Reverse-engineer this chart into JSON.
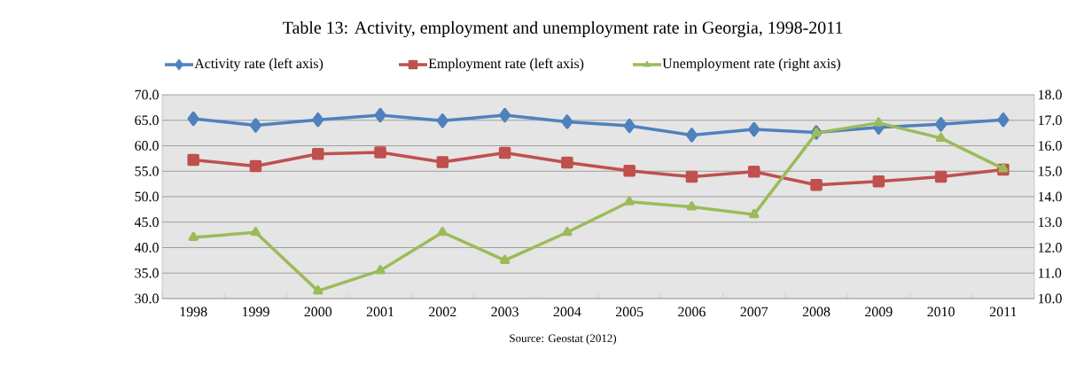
{
  "chart_data": {
    "type": "line",
    "title": "Table 13: Activity, employment and unemployment rate in Georgia, 1998-2011",
    "categories": [
      "1998",
      "1999",
      "2000",
      "2001",
      "2002",
      "2003",
      "2004",
      "2005",
      "2006",
      "2007",
      "2008",
      "2009",
      "2010",
      "2011"
    ],
    "series": [
      {
        "name": "Activity rate (left axis)",
        "color": "#4f81bd",
        "marker": "diamond",
        "values": [
          65.3,
          64.0,
          65.1,
          66.0,
          64.9,
          66.0,
          64.7,
          63.9,
          62.1,
          63.2,
          62.6,
          63.6,
          64.2,
          65.1
        ]
      },
      {
        "name": "Employment rate (left axis)",
        "color": "#c0504d",
        "marker": "square",
        "values": [
          57.2,
          56.0,
          58.4,
          58.7,
          56.8,
          58.6,
          56.7,
          55.1,
          53.9,
          54.9,
          52.3,
          53.0,
          53.9,
          55.3
        ]
      },
      {
        "name": "Unemployment rate (right axis)",
        "color": "#9bbb59",
        "marker": "triangle",
        "axis": "y2",
        "values": [
          12.4,
          12.6,
          10.3,
          11.1,
          12.6,
          11.5,
          12.6,
          13.8,
          13.6,
          13.3,
          16.5,
          16.9,
          16.3,
          15.1
        ]
      }
    ],
    "ylim": [
      30,
      70
    ],
    "yticks": [
      {
        "value": 30,
        "label": "30.0"
      },
      {
        "value": 35,
        "label": "35.0"
      },
      {
        "value": 40,
        "label": "40.0"
      },
      {
        "value": 45,
        "label": "45.0"
      },
      {
        "value": 50,
        "label": "50.0"
      },
      {
        "value": 55,
        "label": "55.0"
      },
      {
        "value": 60,
        "label": "60.0"
      },
      {
        "value": 65,
        "label": "65.0"
      },
      {
        "value": 70,
        "label": "70.0"
      }
    ],
    "y2lim": [
      10,
      18
    ],
    "y2ticks": [
      {
        "value": 10,
        "label": "10.0"
      },
      {
        "value": 11,
        "label": "11.0"
      },
      {
        "value": 12,
        "label": "12.0"
      },
      {
        "value": 13,
        "label": "13.0"
      },
      {
        "value": 14,
        "label": "14.0"
      },
      {
        "value": 15,
        "label": "15.0"
      },
      {
        "value": 16,
        "label": "16.0"
      },
      {
        "value": 17,
        "label": "17.0"
      },
      {
        "value": 18,
        "label": "18.0"
      }
    ],
    "grid": "y",
    "legend": "top",
    "line_style": "solid",
    "annotations": [
      "Source: Geostat (2012)"
    ]
  }
}
